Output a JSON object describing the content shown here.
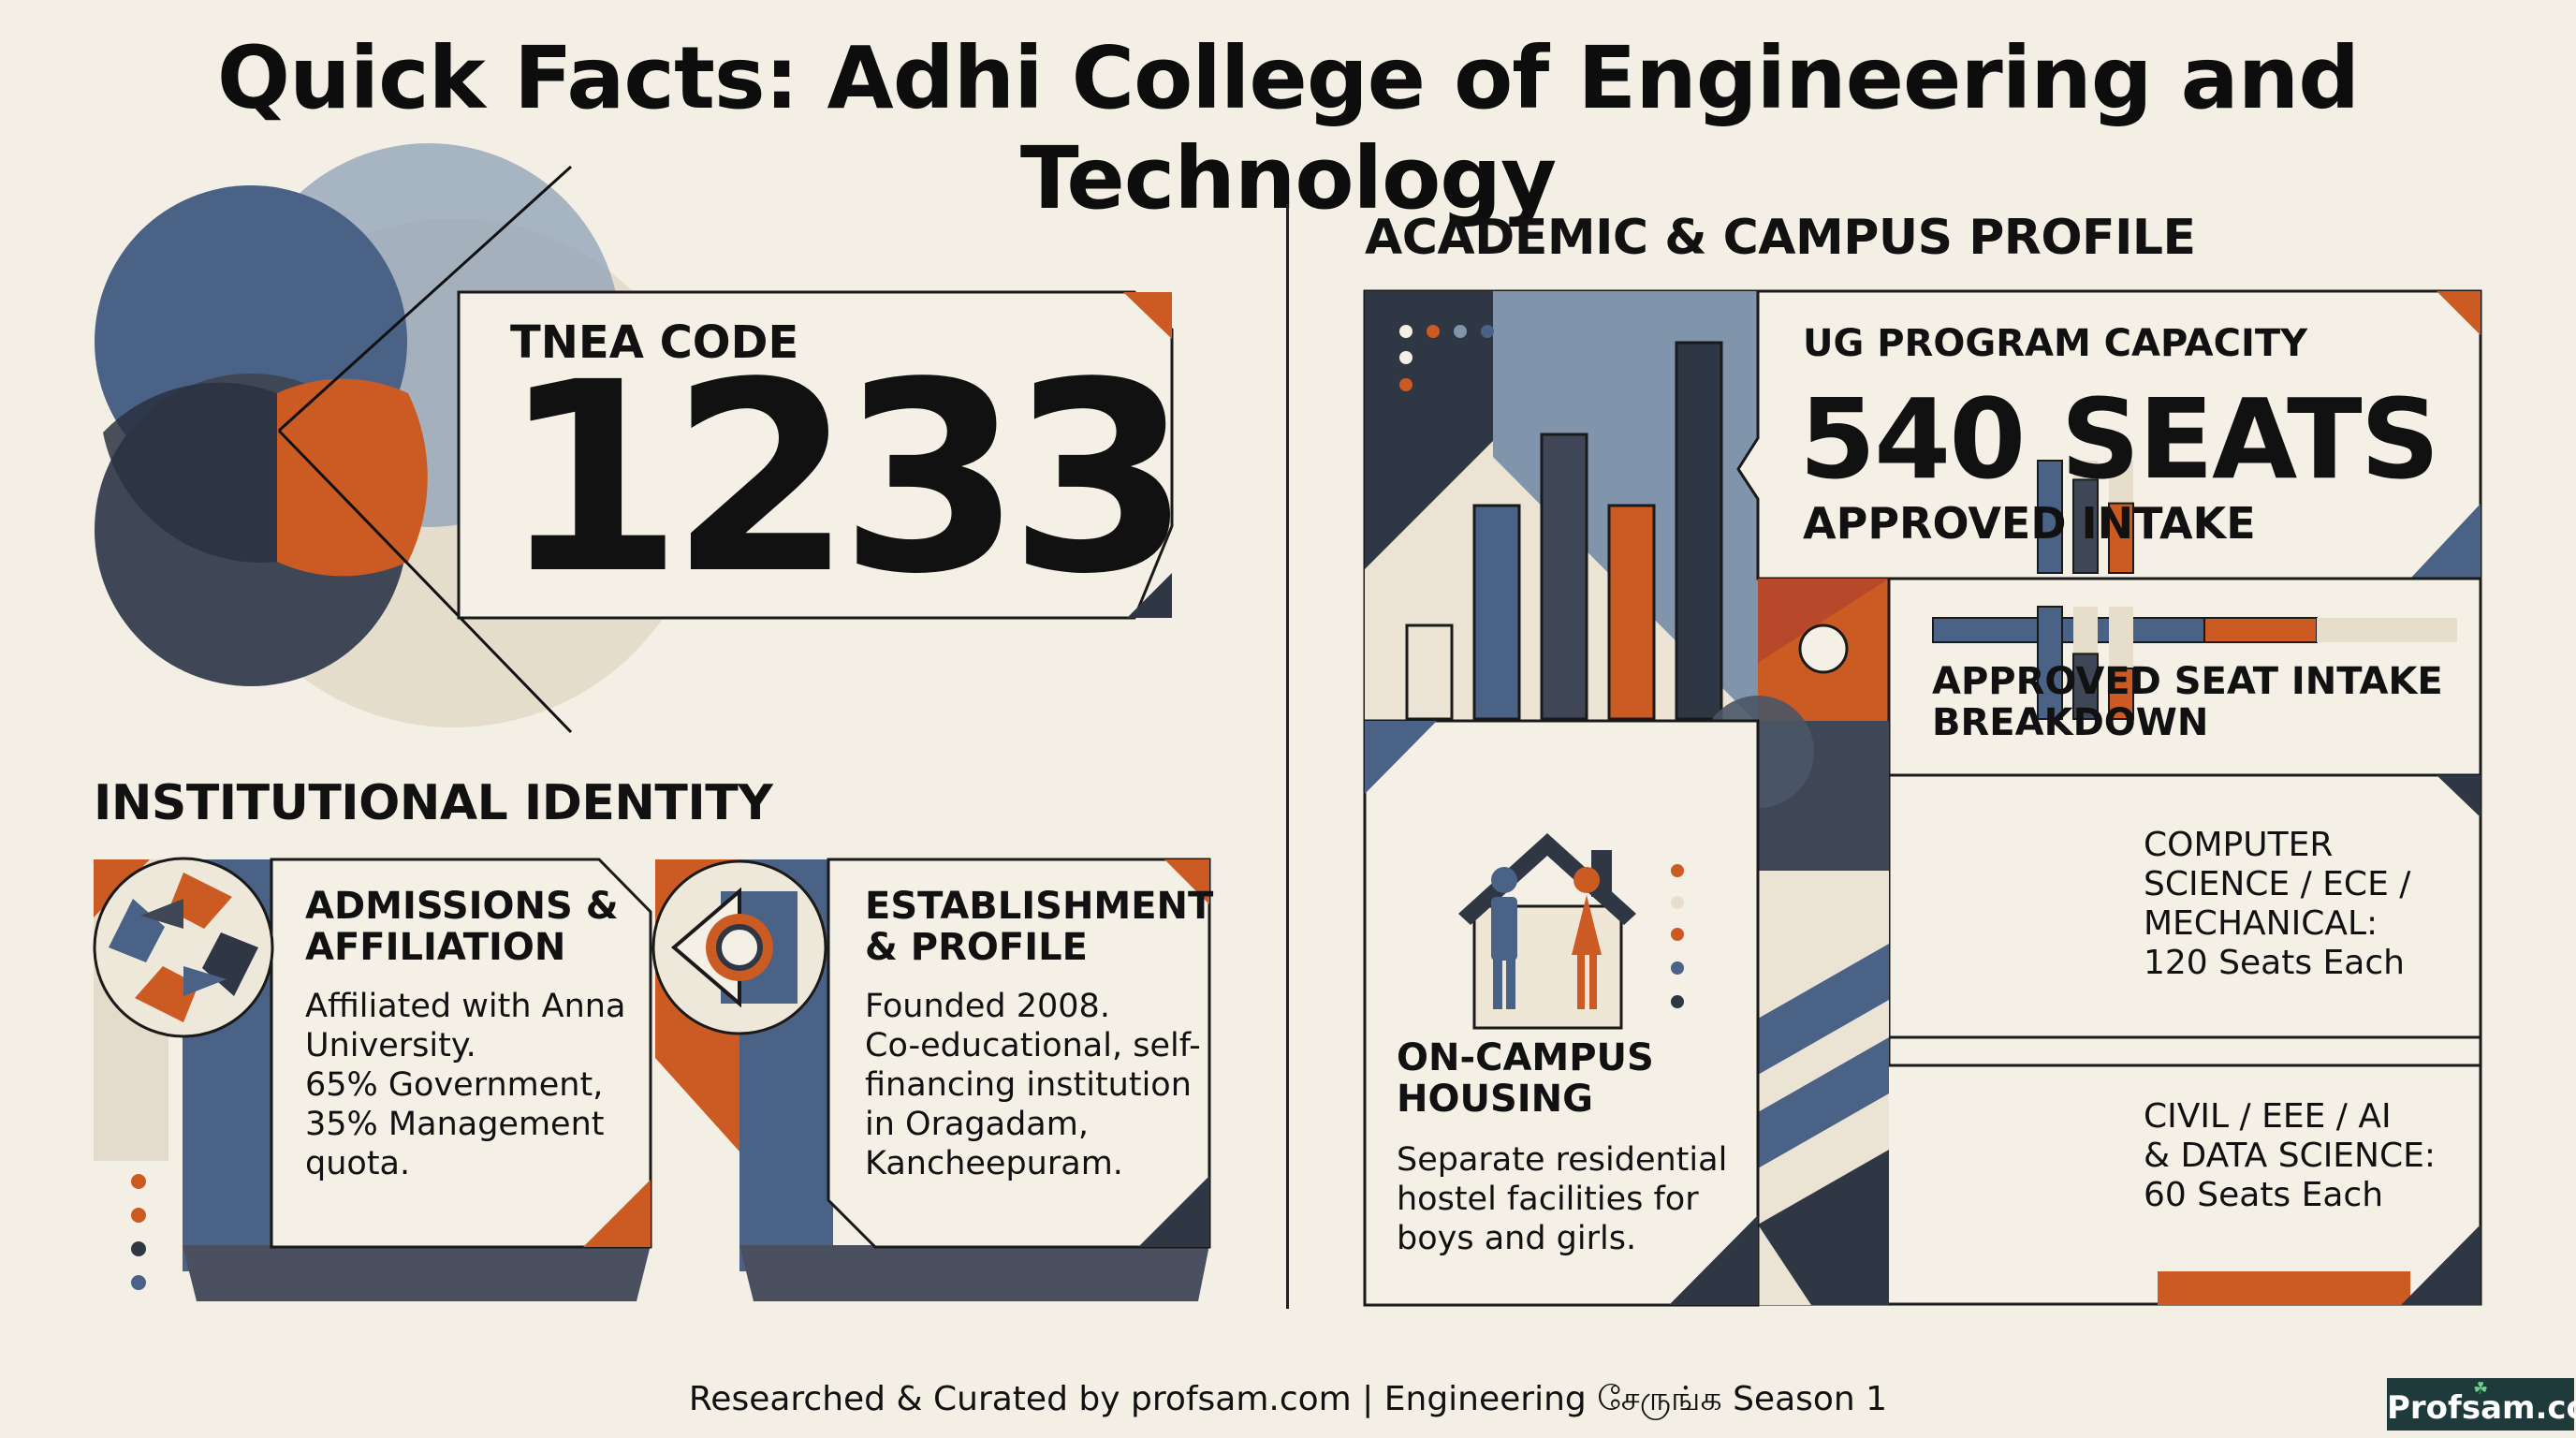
{
  "title": "Quick Facts: Adhi College of Engineering and Technology",
  "colors": {
    "background": "#f3efe4",
    "navy": "#4a6285",
    "charcoal": "#3f4756",
    "dark": "#2f3744",
    "orange": "#cc5b23",
    "slate": "#7d93ad",
    "beige": "#e6ddcb"
  },
  "tnea": {
    "label": "TNEA CODE",
    "code": "1233"
  },
  "identity": {
    "heading": "INSTITUTIONAL IDENTITY",
    "cards": [
      {
        "title_lines": [
          "ADMISSIONS &",
          "AFFILIATION"
        ],
        "body_lines": [
          "Affiliated with Anna",
          "University.",
          "65% Government,",
          "35% Management",
          "quota."
        ],
        "icon": "interlocked-arrows-icon"
      },
      {
        "title_lines": [
          "ESTABLISHMENT",
          "& PROFILE"
        ],
        "body_lines": [
          "Founded 2008.",
          "Co-educational, self-",
          "financing institution",
          "in Oragadam,",
          "Kancheepuram."
        ],
        "icon": "geometric-target-icon"
      }
    ]
  },
  "academic": {
    "heading": "ACADEMIC & CAMPUS PROFILE",
    "ug": {
      "label": "UG PROGRAM CAPACITY",
      "value": "540 SEATS",
      "sub": "APPROVED INTAKE"
    },
    "breakdown": {
      "title_lines": [
        "APPROVED SEAT INTAKE",
        "BREAKDOWN"
      ],
      "groups": [
        {
          "label_lines": [
            "COMPUTER",
            "SCIENCE / ECE /",
            "MECHANICAL:",
            "120 Seats Each"
          ],
          "seats_each": 120
        },
        {
          "label_lines": [
            "CIVIL / EEE / AI",
            "& DATA SCIENCE:",
            "60 Seats Each"
          ],
          "seats_each": 60
        }
      ]
    },
    "housing": {
      "title_lines": [
        "ON-CAMPUS",
        "HOUSING"
      ],
      "body_lines": [
        "Separate residential",
        "hostel facilities for",
        "boys and girls."
      ],
      "icon": "house-with-people-icon"
    }
  },
  "footer": {
    "text": "Researched & Curated by profsam.com | Engineering சேருங்க Season 1",
    "brand": "Profsam.com"
  }
}
